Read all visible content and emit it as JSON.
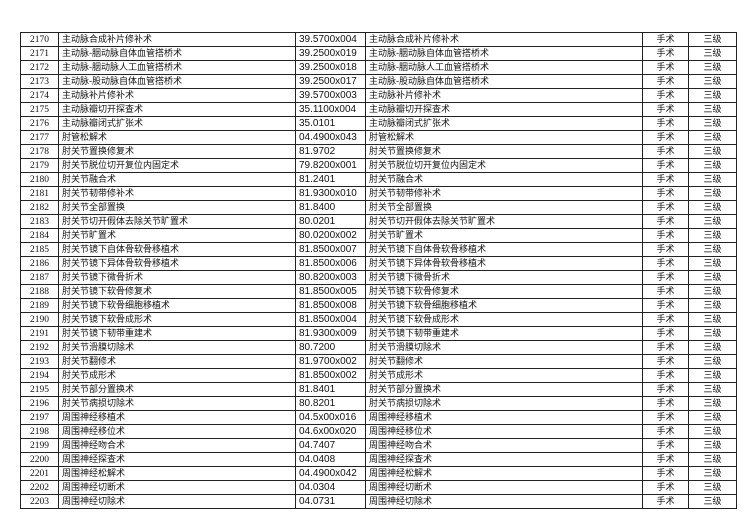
{
  "table": {
    "rows": [
      {
        "no": "2170",
        "name": "主动脉合成补片修补术",
        "code": "39.5700x004",
        "name2": "主动脉合成补片修补术",
        "type": "手术",
        "level": "三级"
      },
      {
        "no": "2171",
        "name": "主动脉-胭动脉自体血管搭桥术",
        "code": "39.2500x019",
        "name2": "主动脉-胭动脉自体血管搭桥术",
        "type": "手术",
        "level": "三级"
      },
      {
        "no": "2172",
        "name": "主动脉-胭动脉人工血管搭桥术",
        "code": "39.2500x018",
        "name2": "主动脉-胭动脉人工血管搭桥术",
        "type": "手术",
        "level": "三级"
      },
      {
        "no": "2173",
        "name": "主动脉-股动脉自体血管搭桥术",
        "code": "39.2500x017",
        "name2": "主动脉-股动脉自体血管搭桥术",
        "type": "手术",
        "level": "三级"
      },
      {
        "no": "2174",
        "name": "主动脉补片修补术",
        "code": "39.5700x003",
        "name2": "主动脉补片修补术",
        "type": "手术",
        "level": "三级"
      },
      {
        "no": "2175",
        "name": "主动脉瓣切开探查术",
        "code": "35.1100x004",
        "name2": "主动脉瓣切开探查术",
        "type": "手术",
        "level": "三级"
      },
      {
        "no": "2176",
        "name": "主动脉瓣闭式扩张术",
        "code": "35.0101",
        "name2": "主动脉瓣闭式扩张术",
        "type": "手术",
        "level": "三级"
      },
      {
        "no": "2177",
        "name": "肘管松解术",
        "code": "04.4900x043",
        "name2": "肘管松解术",
        "type": "手术",
        "level": "三级"
      },
      {
        "no": "2178",
        "name": "肘关节置换修复术",
        "code": "81.9702",
        "name2": "肘关节置换修复术",
        "type": "手术",
        "level": "三级"
      },
      {
        "no": "2179",
        "name": "肘关节脱位切开复位内固定术",
        "code": "79.8200x001",
        "name2": "肘关节脱位切开复位内固定术",
        "type": "手术",
        "level": "三级"
      },
      {
        "no": "2180",
        "name": "肘关节融合术",
        "code": "81.2401",
        "name2": "肘关节融合术",
        "type": "手术",
        "level": "三级"
      },
      {
        "no": "2181",
        "name": "肘关节韧带修补术",
        "code": "81.9300x010",
        "name2": "肘关节韧带修补术",
        "type": "手术",
        "level": "三级"
      },
      {
        "no": "2182",
        "name": "肘关节全部置换",
        "code": "81.8400",
        "name2": "肘关节全部置换",
        "type": "手术",
        "level": "三级"
      },
      {
        "no": "2183",
        "name": "肘关节切开假体去除关节旷置术",
        "code": "80.0201",
        "name2": "肘关节切开假体去除关节旷置术",
        "type": "手术",
        "level": "三级"
      },
      {
        "no": "2184",
        "name": "肘关节旷置术",
        "code": "80.0200x002",
        "name2": "肘关节旷置术",
        "type": "手术",
        "level": "三级"
      },
      {
        "no": "2185",
        "name": "肘关节镜下自体骨软骨移植术",
        "code": "81.8500x007",
        "name2": "肘关节镜下自体骨软骨移植术",
        "type": "手术",
        "level": "三级"
      },
      {
        "no": "2186",
        "name": "肘关节镜下异体骨软骨移植术",
        "code": "81.8500x006",
        "name2": "肘关节镜下异体骨软骨移植术",
        "type": "手术",
        "level": "三级"
      },
      {
        "no": "2187",
        "name": "肘关节镜下微骨折术",
        "code": "80.8200x003",
        "name2": "肘关节镜下微骨折术",
        "type": "手术",
        "level": "三级"
      },
      {
        "no": "2188",
        "name": "肘关节镜下软骨修复术",
        "code": "81.8500x005",
        "name2": "肘关节镜下软骨修复术",
        "type": "手术",
        "level": "三级"
      },
      {
        "no": "2189",
        "name": "肘关节镜下软骨细胞移植术",
        "code": "81.8500x008",
        "name2": "肘关节镜下软骨细胞移植术",
        "type": "手术",
        "level": "三级"
      },
      {
        "no": "2190",
        "name": "肘关节镜下软骨成形术",
        "code": "81.8500x004",
        "name2": "肘关节镜下软骨成形术",
        "type": "手术",
        "level": "三级"
      },
      {
        "no": "2191",
        "name": "肘关节镜下韧带重建术",
        "code": "81.9300x009",
        "name2": "肘关节镜下韧带重建术",
        "type": "手术",
        "level": "三级"
      },
      {
        "no": "2192",
        "name": "肘关节滑膜切除术",
        "code": "80.7200",
        "name2": "肘关节滑膜切除术",
        "type": "手术",
        "level": "三级"
      },
      {
        "no": "2193",
        "name": "肘关节翻修术",
        "code": "81.9700x002",
        "name2": "肘关节翻修术",
        "type": "手术",
        "level": "三级"
      },
      {
        "no": "2194",
        "name": "肘关节成形术",
        "code": "81.8500x002",
        "name2": "肘关节成形术",
        "type": "手术",
        "level": "三级"
      },
      {
        "no": "2195",
        "name": "肘关节部分置换术",
        "code": "81.8401",
        "name2": "肘关节部分置换术",
        "type": "手术",
        "level": "三级"
      },
      {
        "no": "2196",
        "name": "肘关节病损切除术",
        "code": "80.8201",
        "name2": "肘关节病损切除术",
        "type": "手术",
        "level": "三级"
      },
      {
        "no": "2197",
        "name": "周围神经移植术",
        "code": "04.5x00x016",
        "name2": "周围神经移植术",
        "type": "手术",
        "level": "三级"
      },
      {
        "no": "2198",
        "name": "周围神经移位术",
        "code": "04.6x00x020",
        "name2": "周围神经移位术",
        "type": "手术",
        "level": "三级"
      },
      {
        "no": "2199",
        "name": "周围神经吻合术",
        "code": "04.7407",
        "name2": "周围神经吻合术",
        "type": "手术",
        "level": "三级"
      },
      {
        "no": "2200",
        "name": "周围神经探查术",
        "code": "04.0408",
        "name2": "周围神经探查术",
        "type": "手术",
        "level": "三级"
      },
      {
        "no": "2201",
        "name": "周围神经松解术",
        "code": "04.4900x042",
        "name2": "周围神经松解术",
        "type": "手术",
        "level": "三级"
      },
      {
        "no": "2202",
        "name": "周围神经切断术",
        "code": "04.0304",
        "name2": "周围神经切断术",
        "type": "手术",
        "level": "三级"
      },
      {
        "no": "2203",
        "name": "周围神经切除术",
        "code": "04.0731",
        "name2": "周围神经切除术",
        "type": "手术",
        "level": "三级"
      }
    ]
  }
}
